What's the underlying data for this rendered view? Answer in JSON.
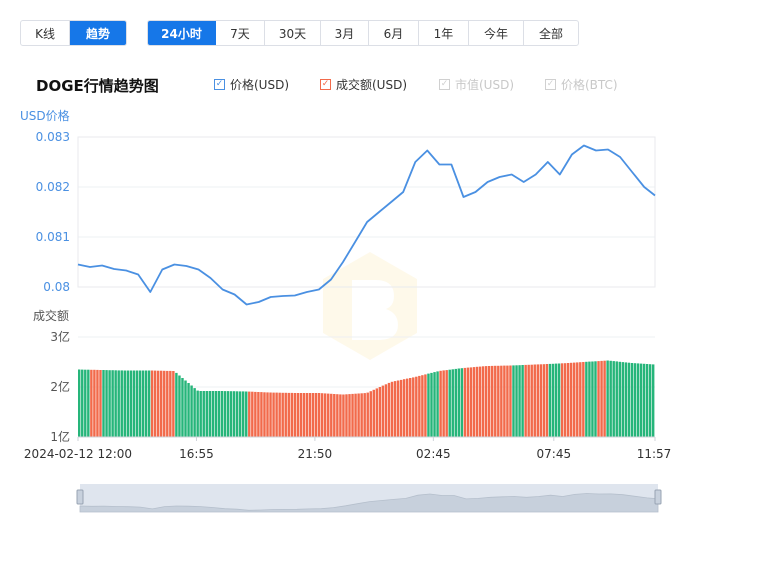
{
  "chart_tabs": {
    "items": [
      {
        "label": "K线",
        "active": false
      },
      {
        "label": "趋势",
        "active": true
      }
    ]
  },
  "range_tabs": {
    "items": [
      {
        "label": "24小时",
        "active": true
      },
      {
        "label": "7天",
        "active": false
      },
      {
        "label": "30天",
        "active": false
      },
      {
        "label": "3月",
        "active": false
      },
      {
        "label": "6月",
        "active": false
      },
      {
        "label": "1年",
        "active": false
      },
      {
        "label": "今年",
        "active": false
      },
      {
        "label": "全部",
        "active": false
      }
    ]
  },
  "chart_title": "DOGE行情趋势图",
  "legend": [
    {
      "label": "价格(USD)",
      "checked": true,
      "color": "#4a90e2"
    },
    {
      "label": "成交额(USD)",
      "checked": true,
      "color": "#f26a4b"
    },
    {
      "label": "市值(USD)",
      "checked": false,
      "color": "#c8c8c8"
    },
    {
      "label": "价格(BTC)",
      "checked": false,
      "color": "#c8c8c8"
    }
  ],
  "colors": {
    "price_line": "#4a90e2",
    "volume_up": "#f26a4b",
    "volume_down": "#26b57a",
    "active_tab": "#1677e8",
    "axis_label": "#4a90e2"
  },
  "chart_data": {
    "type": "line",
    "price_panel": {
      "ylabel": "USD价格",
      "ylim": [
        0.0797,
        0.0833
      ],
      "yticks": [
        "0.083",
        "0.082",
        "0.081",
        "0.08"
      ],
      "ytick_values": [
        0.083,
        0.082,
        0.081,
        0.08
      ],
      "x": [
        0,
        0.5,
        1,
        1.5,
        2,
        2.5,
        3,
        3.5,
        4,
        4.5,
        5,
        5.5,
        6,
        6.5,
        7,
        7.5,
        8,
        8.5,
        9,
        9.5,
        10,
        10.5,
        11,
        11.5,
        12,
        12.5,
        13,
        13.5,
        14,
        14.5,
        15,
        15.5,
        16,
        16.5,
        17,
        17.5,
        18,
        18.5,
        19,
        19.5,
        20,
        20.5,
        21,
        21.5,
        22,
        22.5,
        23,
        23.5,
        23.95
      ],
      "series": [
        {
          "values": [
            0.08045,
            0.0804,
            0.08043,
            0.08036,
            0.08033,
            0.08025,
            0.0799,
            0.08035,
            0.08045,
            0.08042,
            0.08035,
            0.08018,
            0.07995,
            0.07985,
            0.07965,
            0.0797,
            0.0798,
            0.07982,
            0.07983,
            0.0799,
            0.07995,
            0.08015,
            0.0805,
            0.0809,
            0.0813,
            0.0815,
            0.0817,
            0.0819,
            0.0825,
            0.08273,
            0.08245,
            0.08245,
            0.0818,
            0.0819,
            0.0821,
            0.0822,
            0.08225,
            0.0821,
            0.08225,
            0.0825,
            0.08225,
            0.08265,
            0.08283,
            0.08273,
            0.08275,
            0.0826,
            0.0823,
            0.082,
            0.08183
          ]
        }
      ]
    },
    "volume_panel": {
      "ylabel": "成交额",
      "ylim": [
        1,
        3
      ],
      "yticks": [
        "3亿",
        "2亿",
        "1亿"
      ],
      "ytick_values": [
        3,
        2,
        1
      ],
      "x": [
        0,
        1,
        2,
        3,
        4,
        5,
        6,
        7,
        8,
        9,
        10,
        11,
        12,
        13,
        14,
        15,
        16,
        17,
        18,
        19,
        20,
        21,
        22,
        23,
        23.95
      ],
      "values": [
        2.35,
        2.34,
        2.33,
        2.33,
        2.32,
        1.92,
        1.92,
        1.91,
        1.89,
        1.88,
        1.88,
        1.85,
        1.88,
        2.1,
        2.2,
        2.32,
        2.38,
        2.42,
        2.43,
        2.45,
        2.47,
        2.5,
        2.53,
        2.48,
        2.45
      ]
    },
    "xticks": [
      "2024-02-12 12:00",
      "16:55",
      "21:50",
      "02:45",
      "07:45",
      "11:57"
    ],
    "xtick_positions": [
      0,
      4.917,
      9.833,
      14.75,
      19.75,
      23.95
    ],
    "xlim": [
      0,
      23.95
    ]
  }
}
